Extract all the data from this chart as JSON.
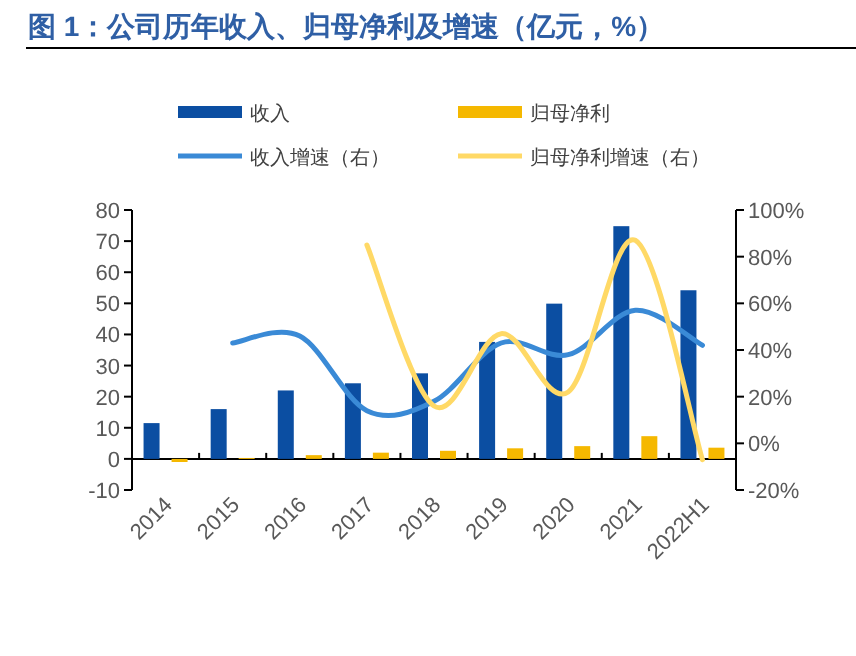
{
  "chart_data": {
    "type": "bar",
    "title": "图 1：公司历年收入、归母净利及增速（亿元，%）",
    "categories": [
      "2014",
      "2015",
      "2016",
      "2017",
      "2018",
      "2019",
      "2020",
      "2021",
      "2022H1"
    ],
    "series": [
      {
        "name": "收入",
        "color": "#0b4ea2",
        "values": [
          11.5,
          16,
          22,
          24.3,
          27.5,
          37.6,
          49.9,
          74.8,
          54.2
        ]
      },
      {
        "name": "归母净利",
        "color": "#f5b800",
        "values": [
          -1,
          0.3,
          1.2,
          2,
          2.6,
          3.4,
          4.1,
          7.3,
          3.6
        ]
      },
      {
        "name": "收入增速（右）",
        "type": "line",
        "axis": "y2",
        "color": "#3a8ad6",
        "values": [
          null,
          43,
          46,
          14,
          18,
          43,
          38,
          57,
          42
        ]
      },
      {
        "name": "归母净利增速（右）",
        "type": "line",
        "axis": "y2",
        "color": "#ffd966",
        "values": [
          null,
          null,
          null,
          85,
          16,
          47,
          22,
          87,
          -7
        ]
      }
    ],
    "ylim": [
      -10,
      80
    ],
    "yticks": [
      -10,
      0,
      10,
      20,
      30,
      40,
      50,
      60,
      70,
      80
    ],
    "y2lim": [
      -20,
      100
    ],
    "y2ticks": [
      {
        "value": -20,
        "label": "-20%"
      },
      {
        "value": 0,
        "label": "0%"
      },
      {
        "value": 20,
        "label": "20%"
      },
      {
        "value": 40,
        "label": "40%"
      },
      {
        "value": 60,
        "label": "60%"
      },
      {
        "value": 80,
        "label": "80%"
      },
      {
        "value": 100,
        "label": "100%"
      }
    ],
    "legend": "top",
    "grid": false,
    "marker": "none",
    "line_style": "solid"
  }
}
